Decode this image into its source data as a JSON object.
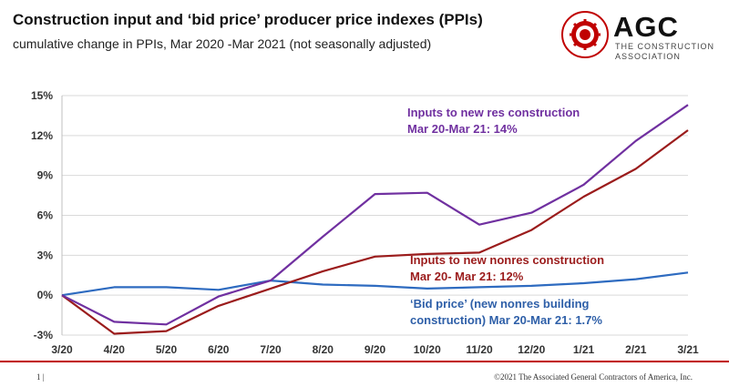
{
  "header": {
    "title": "Construction input and ‘bid price’ producer price indexes (PPIs)",
    "subtitle": "cumulative change in PPIs, Mar 2020 -Mar 2021 (not seasonally adjusted)"
  },
  "logo": {
    "name": "AGC",
    "tagline_1": "THE CONSTRUCTION",
    "tagline_2": "ASSOCIATION",
    "seal_text": "THE ASSOCIATED GENERAL CONTRACTORS OF AMERICA",
    "seal_letters": "AGC"
  },
  "footer": {
    "page": "1 |",
    "copyright": "©2021 The Associated General Contractors of America, Inc."
  },
  "annotations": {
    "purple_1": "Inputs to new res construction",
    "purple_2": "Mar 20-Mar 21: 14%",
    "red_1": "Inputs to new nonres construction",
    "red_2": "Mar 20- Mar 21: 12%",
    "blue_1": "‘Bid price’ (new nonres building",
    "blue_2": "construction) Mar 20-Mar 21: 1.7%"
  },
  "colors": {
    "purple": "#7030a0",
    "red": "#9b1c1c",
    "blue": "#2e6bc0",
    "accent_red": "#c00000"
  },
  "chart_data": {
    "type": "line",
    "title": "Construction input and ‘bid price’ producer price indexes (PPIs)",
    "categories": [
      "3/20",
      "4/20",
      "5/20",
      "6/20",
      "7/20",
      "8/20",
      "9/20",
      "10/20",
      "11/20",
      "12/20",
      "1/21",
      "2/21",
      "3/21"
    ],
    "ylim": [
      -3,
      15
    ],
    "yticks": [
      -3,
      0,
      3,
      6,
      9,
      12,
      15
    ],
    "ytick_labels": [
      "-3%",
      "0%",
      "3%",
      "6%",
      "9%",
      "12%",
      "15%"
    ],
    "grid": "horizontal",
    "series": [
      {
        "name": "Inputs to new res construction",
        "color": "#7030a0",
        "values": [
          0,
          -2.0,
          -2.2,
          -0.1,
          1.1,
          4.4,
          7.6,
          7.7,
          5.3,
          6.2,
          8.3,
          11.6,
          14.3
        ]
      },
      {
        "name": "Inputs to new nonres construction",
        "color": "#9b1c1c",
        "values": [
          0,
          -2.9,
          -2.7,
          -0.8,
          0.5,
          1.8,
          2.9,
          3.1,
          3.2,
          4.9,
          7.4,
          9.5,
          12.4
        ]
      },
      {
        "name": "‘Bid price’ (new nonres building construction)",
        "color": "#2e6bc0",
        "values": [
          0,
          0.6,
          0.6,
          0.4,
          1.1,
          0.8,
          0.7,
          0.5,
          0.6,
          0.7,
          0.9,
          1.2,
          1.7
        ]
      }
    ]
  }
}
